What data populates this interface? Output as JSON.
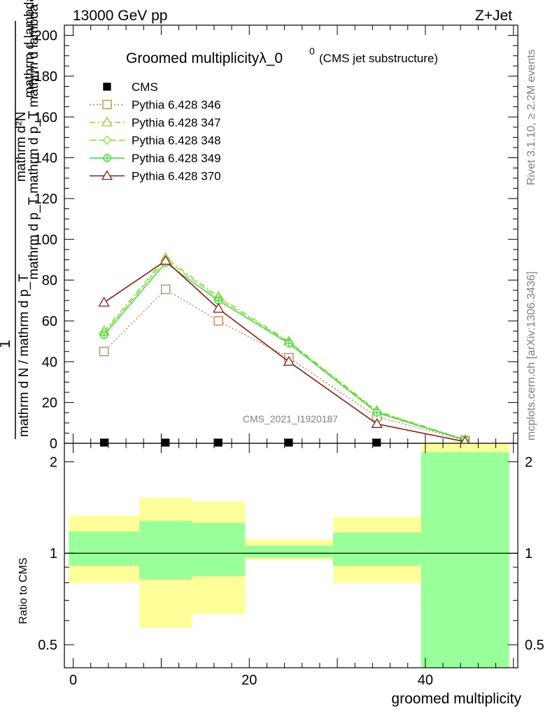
{
  "header": {
    "energy": "13000 GeV pp",
    "process": "Z+Jet"
  },
  "title": {
    "main": "Groomed multiplicityλ_0",
    "superscript": "0",
    "sub": "(CMS jet substructure)"
  },
  "side_labels": {
    "rivet": "Rivet 3.1.10, ≥ 2.2M events",
    "mcplots": "mcplots.cern.ch [arXiv:1306.3436]"
  },
  "analysis_id": "CMS_2021_I1920187",
  "colors": {
    "cms": "#000000",
    "p346": "#b8864b",
    "p347": "#9acd32",
    "p348": "#7fdd3a",
    "p349": "#33dd33",
    "p370": "#8b1a1a",
    "band_outer": "#ffff99",
    "band_inner": "#99ff99"
  },
  "chart_data": [
    {
      "type": "line",
      "ylabel": {
        "numerator": "1",
        "denominator_line1": "mathrm d N / mathrm d p_T mathrm d p_T mathrm d lambda",
        "numerator_full": "mathrm d²N",
        "denominator_full": "mathrm d p_T mathrm d lambda"
      },
      "ylabel_parts": {
        "top": "mathrm d²N",
        "bottom": "mathrm d p_T mathrm d p_T mathrm d lambda"
      },
      "ylabel_outer": "mathrm d N / mathrm d p_T",
      "ylim": [
        0,
        205
      ],
      "yticks": [
        "0",
        "20",
        "40",
        "60",
        "80",
        "100",
        "120",
        "140",
        "160",
        "180",
        "200"
      ],
      "ytick_values": [
        0,
        20,
        40,
        60,
        80,
        100,
        120,
        140,
        160,
        180,
        200
      ],
      "xlim": [
        -1,
        50.5
      ],
      "x": [
        3.5,
        10.5,
        16.5,
        24.5,
        34.5,
        44.5
      ],
      "legend_position": "top-left",
      "series": [
        {
          "name": "CMS",
          "values": [
            0.3,
            0.3,
            0.3,
            0.3,
            0.3,
            0.3
          ],
          "marker": "square-filled",
          "dash": "none"
        },
        {
          "name": "Pythia 6.428 346",
          "values": [
            45,
            75.5,
            60,
            42,
            13,
            1.5
          ],
          "marker": "square-open",
          "dash": "2,3"
        },
        {
          "name": "Pythia 6.428 347",
          "values": [
            55,
            91,
            72,
            50,
            16,
            1.8
          ],
          "marker": "triangle-open",
          "dash": "8,4,2,4"
        },
        {
          "name": "Pythia 6.428 348",
          "values": [
            54,
            90,
            71,
            49.5,
            15.5,
            1.7
          ],
          "marker": "diamond-open",
          "dash": "10,4"
        },
        {
          "name": "Pythia 6.428 349",
          "values": [
            53,
            88.5,
            70,
            49,
            15,
            1.6
          ],
          "marker": "circle-cross",
          "dash": "none"
        },
        {
          "name": "Pythia 6.428 370",
          "values": [
            69,
            89.5,
            66,
            40,
            9.5,
            0.8
          ],
          "marker": "triangle-open",
          "dash": "none"
        }
      ]
    },
    {
      "type": "area",
      "ylabel": "Ratio to CMS",
      "yscale": "log",
      "ylim": [
        0.42,
        2.3
      ],
      "yticks": [
        "0.5",
        "1",
        "2"
      ],
      "ytick_values": [
        0.5,
        1,
        2
      ],
      "xlabel": "groomed multiplicity",
      "xticks": [
        "0",
        "20",
        "40"
      ],
      "xtick_values": [
        0,
        20,
        40
      ],
      "xlim": [
        -1,
        50.5
      ],
      "bins": [
        {
          "x": [
            -0.5,
            7.5
          ],
          "outer": [
            0.8,
            1.33
          ],
          "inner": [
            0.91,
            1.18
          ]
        },
        {
          "x": [
            7.5,
            13.5
          ],
          "outer": [
            0.57,
            1.52
          ],
          "inner": [
            0.82,
            1.28
          ]
        },
        {
          "x": [
            13.5,
            19.5
          ],
          "outer": [
            0.63,
            1.48
          ],
          "inner": [
            0.84,
            1.26
          ]
        },
        {
          "x": [
            19.5,
            29.5
          ],
          "outer": [
            0.95,
            1.11
          ],
          "inner": [
            0.97,
            1.06
          ]
        },
        {
          "x": [
            29.5,
            39.5
          ],
          "outer": [
            0.8,
            1.32
          ],
          "inner": [
            0.91,
            1.17
          ]
        },
        {
          "x": [
            39.5,
            49.5
          ],
          "outer": [
            0.42,
            2.3
          ],
          "inner": [
            0.42,
            2.15
          ]
        }
      ]
    }
  ]
}
